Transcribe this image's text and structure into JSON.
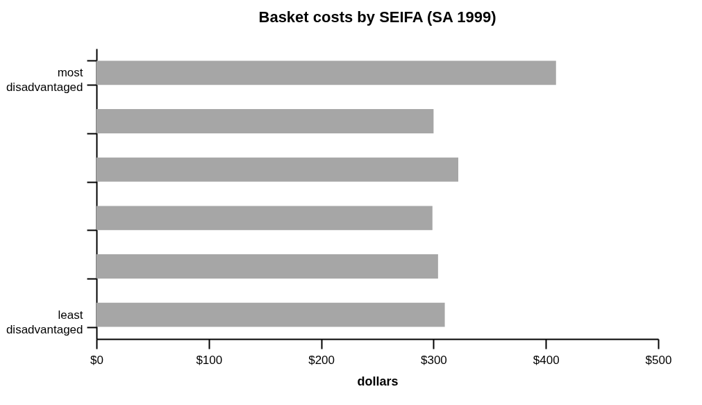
{
  "chart_data": {
    "type": "bar",
    "orientation": "horizontal",
    "title": "Basket costs by SEIFA (SA 1999)",
    "xlabel": "dollars",
    "categories": [
      "most disadvantaged",
      null,
      null,
      null,
      null,
      "least disadvantaged"
    ],
    "values": [
      409,
      300,
      322,
      299,
      304,
      310
    ],
    "color": "#a6a6a6",
    "xlim": [
      0,
      500
    ],
    "xticks": [
      {
        "value": 0,
        "label": "$0"
      },
      {
        "value": 100,
        "label": "$100"
      },
      {
        "value": 200,
        "label": "$200"
      },
      {
        "value": 300,
        "label": "$300"
      },
      {
        "value": 400,
        "label": "$400"
      },
      {
        "value": 500,
        "label": "$500"
      }
    ],
    "grid": false
  }
}
